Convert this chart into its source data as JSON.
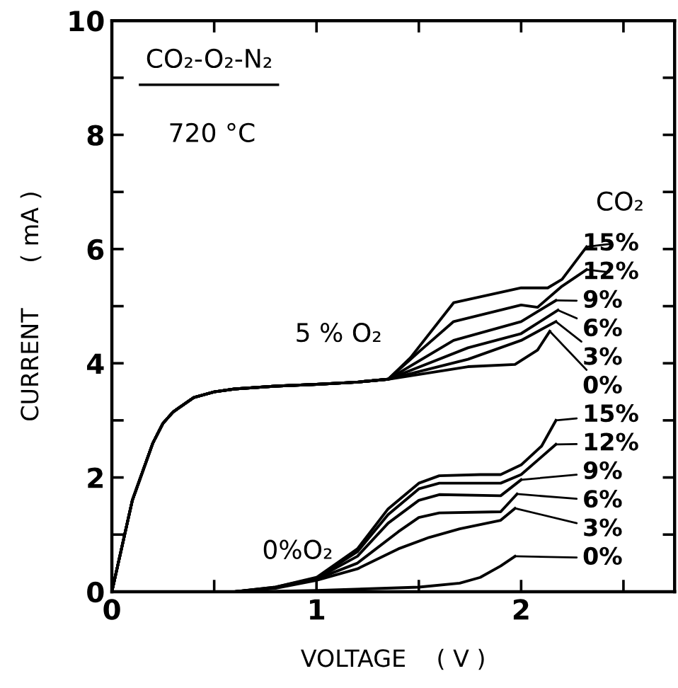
{
  "chart_data": {
    "type": "line",
    "xlabel": "VOLTAGE    ( V )",
    "ylabel": "CURRENT      ( mA )",
    "annotations": [
      "CO₂-O₂-N₂",
      "720 °C",
      "CO₂",
      "5 % O₂",
      "0%O₂"
    ],
    "xlim": [
      0,
      2.75
    ],
    "ylim": [
      0,
      10
    ],
    "xticks": [
      0,
      {
        "value": 0.5,
        "label": null
      },
      1,
      {
        "value": 1.5,
        "label": null
      },
      2,
      {
        "value": 2.5,
        "label": null
      }
    ],
    "yticks": [
      0,
      {
        "value": 1,
        "label": null
      },
      2,
      {
        "value": 3,
        "label": null
      },
      4,
      {
        "value": 5,
        "label": null
      },
      6,
      {
        "value": 7,
        "label": null
      },
      8,
      {
        "value": 9,
        "label": null
      },
      10
    ],
    "grid": false,
    "legend": "right",
    "marker": "none",
    "line_style": "solid",
    "series": [
      {
        "name": "15%",
        "color": "#000000",
        "x": [
          0,
          0.05,
          0.1,
          0.2,
          0.25,
          0.3,
          0.4,
          0.5,
          0.6,
          0.8,
          1.0,
          1.2,
          1.35,
          1.46,
          1.67,
          2.0,
          2.13,
          2.2,
          2.32
        ],
        "values": [
          0,
          0.8,
          1.6,
          2.6,
          2.95,
          3.15,
          3.4,
          3.5,
          3.55,
          3.6,
          3.63,
          3.67,
          3.72,
          4.1,
          5.06,
          5.32,
          5.32,
          5.47,
          6.04
        ]
      },
      {
        "name": "12%",
        "color": "#000000",
        "x": [
          0,
          0.05,
          0.1,
          0.2,
          0.25,
          0.3,
          0.4,
          0.5,
          0.6,
          0.8,
          1.0,
          1.2,
          1.35,
          1.51,
          1.67,
          2.0,
          2.08,
          2.2,
          2.32
        ],
        "values": [
          0,
          0.8,
          1.6,
          2.6,
          2.95,
          3.15,
          3.4,
          3.5,
          3.55,
          3.6,
          3.63,
          3.67,
          3.72,
          4.23,
          4.73,
          5.02,
          4.98,
          5.35,
          5.64
        ]
      },
      {
        "name": "9%",
        "color": "#000000",
        "x": [
          0,
          0.05,
          0.1,
          0.2,
          0.25,
          0.3,
          0.4,
          0.5,
          0.6,
          0.8,
          1.0,
          1.2,
          1.35,
          1.67,
          2.0,
          2.17
        ],
        "values": [
          0,
          0.8,
          1.6,
          2.6,
          2.95,
          3.15,
          3.4,
          3.5,
          3.55,
          3.6,
          3.63,
          3.67,
          3.72,
          4.4,
          4.73,
          5.1
        ]
      },
      {
        "name": "6%",
        "color": "#000000",
        "x": [
          0,
          0.05,
          0.1,
          0.2,
          0.25,
          0.3,
          0.4,
          0.5,
          0.6,
          0.8,
          1.0,
          1.2,
          1.35,
          1.74,
          2.0,
          2.18
        ],
        "values": [
          0,
          0.8,
          1.6,
          2.6,
          2.95,
          3.15,
          3.4,
          3.5,
          3.55,
          3.6,
          3.63,
          3.67,
          3.72,
          4.27,
          4.52,
          4.93
        ]
      },
      {
        "name": "3%",
        "color": "#000000",
        "x": [
          0,
          0.05,
          0.1,
          0.2,
          0.25,
          0.3,
          0.4,
          0.5,
          0.6,
          0.8,
          1.0,
          1.2,
          1.35,
          1.74,
          2.0,
          2.17
        ],
        "values": [
          0,
          0.8,
          1.6,
          2.6,
          2.95,
          3.15,
          3.4,
          3.5,
          3.55,
          3.6,
          3.63,
          3.67,
          3.72,
          4.07,
          4.4,
          4.73
        ]
      },
      {
        "name": "0%",
        "color": "#000000",
        "x": [
          0,
          0.05,
          0.1,
          0.2,
          0.25,
          0.3,
          0.4,
          0.5,
          0.6,
          0.8,
          1.0,
          1.2,
          1.35,
          1.74,
          1.97,
          2.08,
          2.14
        ],
        "values": [
          0,
          0.8,
          1.6,
          2.6,
          2.95,
          3.15,
          3.4,
          3.5,
          3.55,
          3.6,
          3.63,
          3.67,
          3.72,
          3.94,
          3.98,
          4.23,
          4.56
        ]
      },
      {
        "name": "15%",
        "color": "#000000",
        "x": [
          0.6,
          0.8,
          1.0,
          1.2,
          1.35,
          1.5,
          1.6,
          1.8,
          1.9,
          2.0,
          2.1,
          2.17
        ],
        "values": [
          0,
          0.08,
          0.25,
          0.75,
          1.45,
          1.9,
          2.03,
          2.05,
          2.05,
          2.22,
          2.55,
          3.0
        ]
      },
      {
        "name": "12%",
        "color": "#000000",
        "x": [
          0.6,
          0.8,
          1.0,
          1.2,
          1.35,
          1.5,
          1.6,
          1.9,
          2.0,
          2.17
        ],
        "values": [
          0,
          0.08,
          0.24,
          0.7,
          1.35,
          1.8,
          1.9,
          1.9,
          2.05,
          2.58
        ]
      },
      {
        "name": "9%",
        "color": "#000000",
        "x": [
          0.6,
          0.8,
          1.0,
          1.2,
          1.35,
          1.5,
          1.6,
          1.9,
          2.0
        ],
        "values": [
          0,
          0.07,
          0.23,
          0.62,
          1.2,
          1.6,
          1.7,
          1.68,
          1.96
        ]
      },
      {
        "name": "6%",
        "color": "#000000",
        "x": [
          0.6,
          0.8,
          1.0,
          1.2,
          1.4,
          1.5,
          1.6,
          1.9,
          1.98
        ],
        "values": [
          0,
          0.07,
          0.22,
          0.5,
          1.05,
          1.3,
          1.38,
          1.4,
          1.71
        ]
      },
      {
        "name": "3%",
        "color": "#000000",
        "x": [
          0.6,
          0.8,
          1.0,
          1.2,
          1.4,
          1.55,
          1.7,
          1.9,
          1.97
        ],
        "values": [
          0,
          0.06,
          0.2,
          0.4,
          0.75,
          0.95,
          1.1,
          1.25,
          1.46
        ]
      },
      {
        "name": "0%",
        "color": "#000000",
        "x": [
          0.7,
          1.0,
          1.5,
          1.7,
          1.8,
          1.9,
          1.97
        ],
        "values": [
          0,
          0.02,
          0.08,
          0.15,
          0.25,
          0.45,
          0.62
        ]
      }
    ]
  }
}
